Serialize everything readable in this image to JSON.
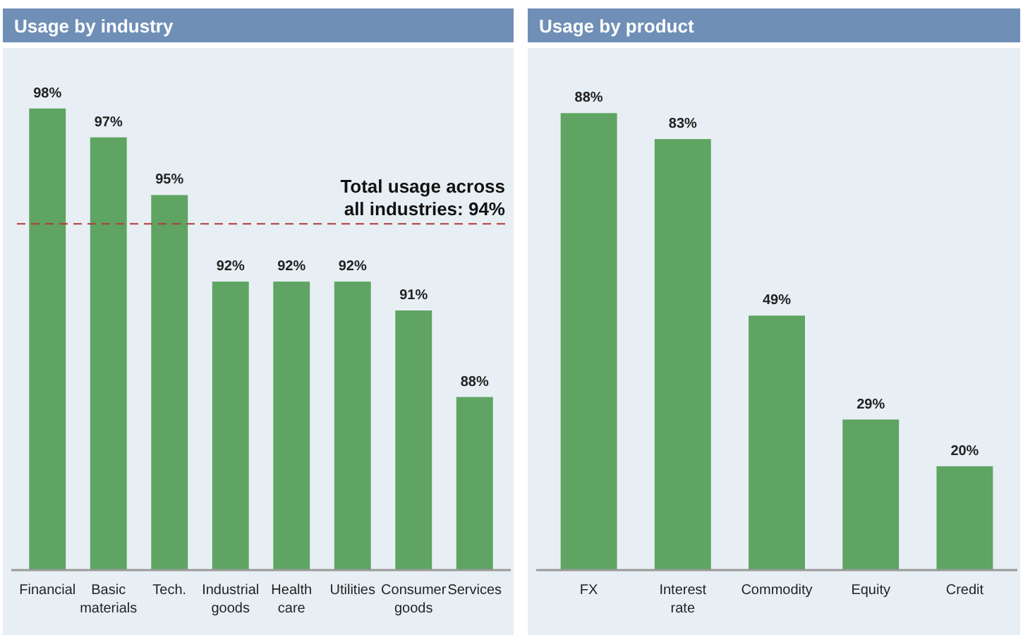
{
  "chart_data": [
    {
      "type": "bar",
      "title": "Usage by industry",
      "categories": [
        "Financial",
        "Basic materials",
        "Tech.",
        "Industrial goods",
        "Health care",
        "Utilities",
        "Consumer goods",
        "Services"
      ],
      "values": [
        98,
        97,
        95,
        92,
        92,
        92,
        91,
        88
      ],
      "value_labels": [
        "98%",
        "97%",
        "95%",
        "92%",
        "92%",
        "92%",
        "91%",
        "88%"
      ],
      "color": "#5fa463",
      "ylim": [
        82,
        100
      ],
      "tick_labels": "x",
      "ref_lines": [
        {
          "axis": "y",
          "value": 94,
          "label": "Total usage across all industries: 94%",
          "color": "#b03a3a",
          "line_style": "dashed"
        }
      ]
    },
    {
      "type": "bar",
      "title": "Usage by product",
      "categories": [
        "FX",
        "Interest rate",
        "Commodity",
        "Equity",
        "Credit"
      ],
      "values": [
        88,
        83,
        49,
        29,
        20
      ],
      "value_labels": [
        "88%",
        "83%",
        "49%",
        "29%",
        "20%"
      ],
      "color": "#5fa463",
      "ylim": [
        0,
        100
      ],
      "tick_labels": "x"
    }
  ]
}
